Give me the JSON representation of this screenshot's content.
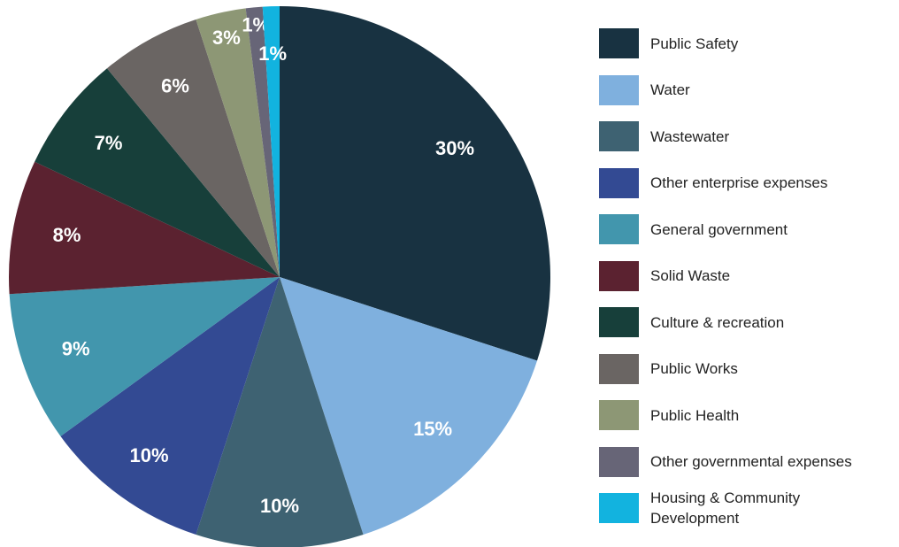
{
  "chart_data": {
    "type": "pie",
    "categories": [
      "Public Safety",
      "Water",
      "Wastewater",
      "Other enterprise expenses",
      "General government",
      "Solid Waste",
      "Culture & recreation",
      "Public Works",
      "Public Health",
      "Other governmental expenses",
      "Housing & Community Development"
    ],
    "values": [
      30,
      15,
      10,
      10,
      9,
      8,
      7,
      6,
      3,
      1,
      1
    ],
    "value_labels": [
      "30%",
      "15%",
      "10%",
      "10%",
      "9%",
      "8%",
      "7%",
      "6%",
      "3%",
      "1%",
      "1%"
    ],
    "colors": [
      "#183241",
      "#7fb0de",
      "#3e6272",
      "#334a93",
      "#4296ad",
      "#5b2230",
      "#173f3a",
      "#6a6563",
      "#8d9775",
      "#676577",
      "#12b3df"
    ],
    "legend": "right"
  }
}
